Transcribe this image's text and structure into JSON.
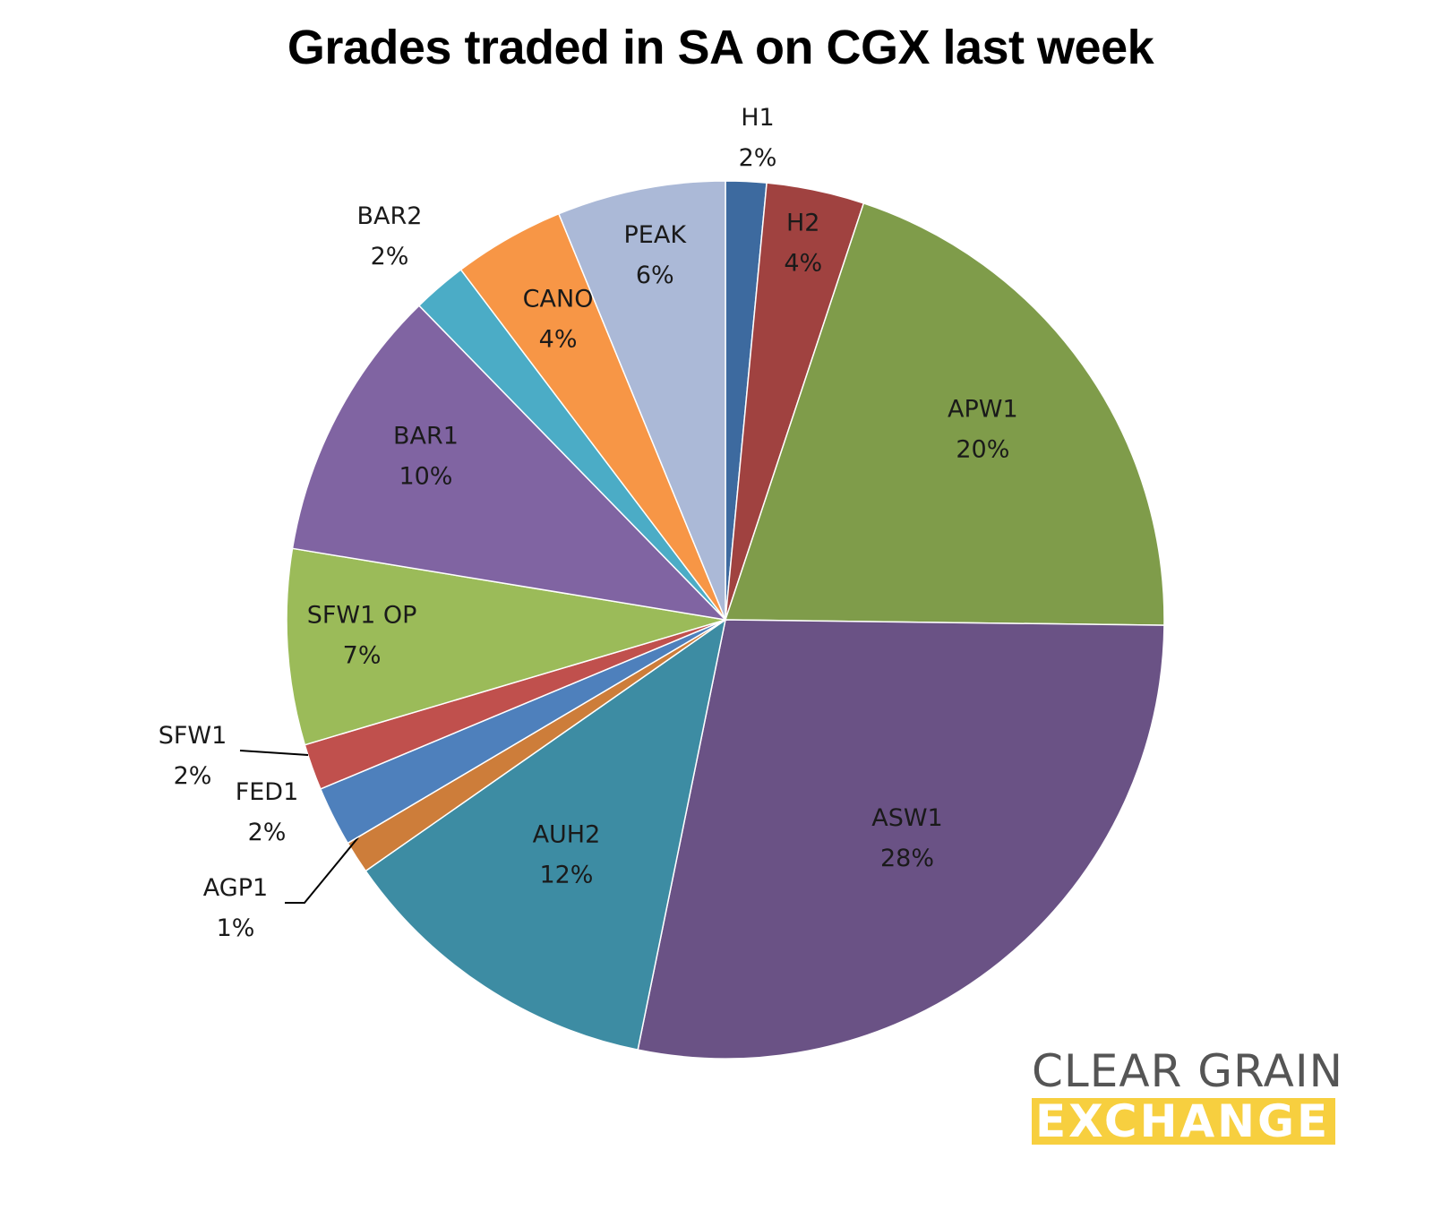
{
  "chart_data": {
    "type": "pie",
    "title": "Grades traded in SA on CGX last week",
    "slices": [
      {
        "label": "H1",
        "value": 1.5,
        "percent_label": "2%",
        "color": "#3d6a9f"
      },
      {
        "label": "H2",
        "value": 3.6,
        "percent_label": "4%",
        "color": "#a04240"
      },
      {
        "label": "APW1",
        "value": 20.1,
        "percent_label": "20%",
        "color": "#7f9c4a"
      },
      {
        "label": "ASW1",
        "value": 28.0,
        "percent_label": "28%",
        "color": "#6a5285"
      },
      {
        "label": "AUH2",
        "value": 12.1,
        "percent_label": "12%",
        "color": "#3d8ca3"
      },
      {
        "label": "AGP1",
        "value": 1.2,
        "percent_label": "1%",
        "color": "#cd7d3a"
      },
      {
        "label": "FED1",
        "value": 2.2,
        "percent_label": "2%",
        "color": "#4e80bc"
      },
      {
        "label": "SFW1",
        "value": 1.7,
        "percent_label": "2%",
        "color": "#c0504d"
      },
      {
        "label": "SFW1 OP",
        "value": 7.2,
        "percent_label": "7%",
        "color": "#9bbb59"
      },
      {
        "label": "BAR1",
        "value": 10.1,
        "percent_label": "10%",
        "color": "#8064a2"
      },
      {
        "label": "BAR2",
        "value": 2.0,
        "percent_label": "2%",
        "color": "#4bacc6"
      },
      {
        "label": "CANO",
        "value": 4.1,
        "percent_label": "4%",
        "color": "#f79646"
      },
      {
        "label": "PEAK",
        "value": 6.2,
        "percent_label": "6%",
        "color": "#abb9d7"
      }
    ]
  },
  "logo": {
    "line1": "CLEAR GRAIN",
    "line2": "EXCHANGE",
    "text_color": "#555555",
    "accent": "#f7cf3f"
  }
}
